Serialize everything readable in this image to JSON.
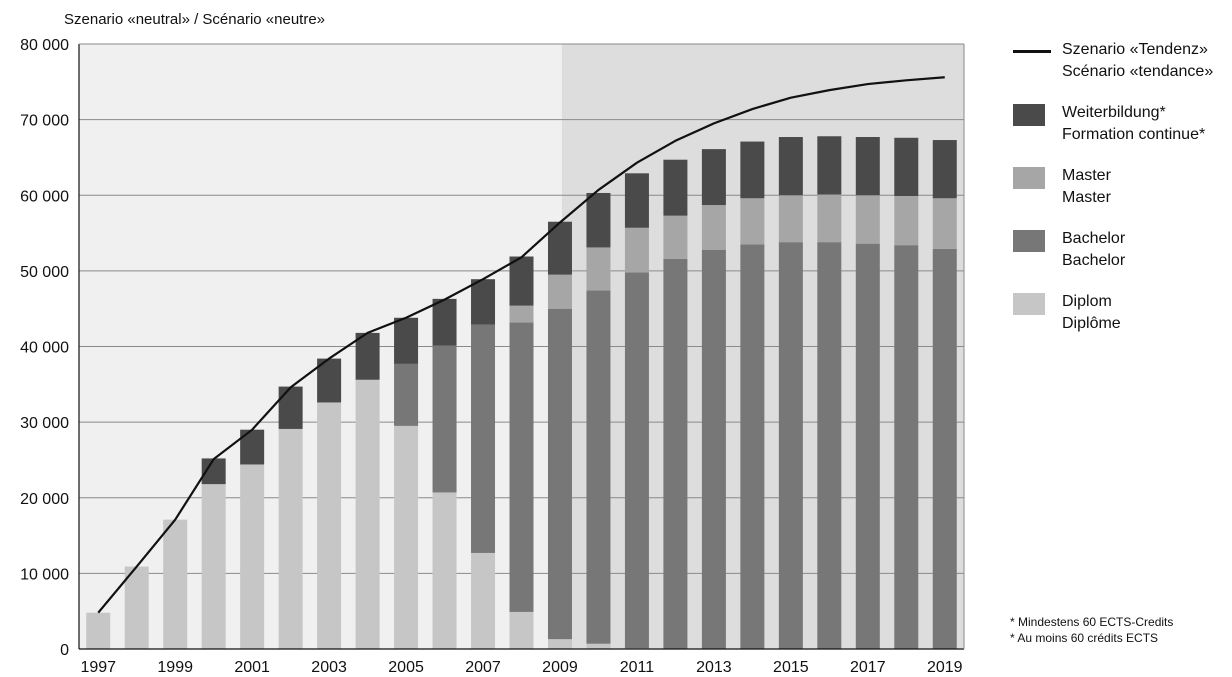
{
  "chart_data": {
    "type": "bar",
    "stacked": true,
    "subtitle": "Szenario «neutral» / Scénario «neutre»",
    "categories": [
      "1997",
      "1998",
      "1999",
      "2000",
      "2001",
      "2002",
      "2003",
      "2004",
      "2005",
      "2006",
      "2007",
      "2008",
      "2009",
      "2010",
      "2011",
      "2012",
      "2013",
      "2014",
      "2015",
      "2016",
      "2017",
      "2018",
      "2019"
    ],
    "x_tick_labels": [
      "1997",
      "1999",
      "2001",
      "2003",
      "2005",
      "2007",
      "2009",
      "2011",
      "2013",
      "2015",
      "2017",
      "2019"
    ],
    "ylim": [
      0,
      80000
    ],
    "y_ticks": [
      0,
      10000,
      20000,
      30000,
      40000,
      50000,
      60000,
      70000,
      80000
    ],
    "y_tick_labels": [
      "0",
      "10 000",
      "20 000",
      "30 000",
      "40 000",
      "50 000",
      "60 000",
      "70 000",
      "80 000"
    ],
    "grid": "horizontal",
    "shaded_region": {
      "from": "2010",
      "to": "2019",
      "color": "#dcdddc"
    },
    "plot_background": "#f0f0f0",
    "series": [
      {
        "name": "Diplom\nDiplôme",
        "color": "#c6c6c6",
        "values": [
          4800,
          10900,
          17100,
          21800,
          24400,
          29100,
          32600,
          35600,
          29500,
          20700,
          12700,
          4900,
          1300,
          700,
          100,
          0,
          0,
          0,
          0,
          0,
          0,
          0,
          0
        ]
      },
      {
        "name": "Bachelor\nBachelor",
        "color": "#777777",
        "values": [
          0,
          0,
          0,
          0,
          0,
          0,
          0,
          0,
          8200,
          19400,
          30200,
          38300,
          43700,
          46700,
          49700,
          51600,
          52800,
          53500,
          53800,
          53800,
          53600,
          53400,
          52900
        ]
      },
      {
        "name": "Master\nMaster",
        "color": "#a6a6a6",
        "values": [
          0,
          0,
          0,
          0,
          0,
          0,
          0,
          0,
          0,
          0,
          0,
          2200,
          4500,
          5700,
          5900,
          5700,
          5900,
          6100,
          6200,
          6300,
          6400,
          6500,
          6700
        ]
      },
      {
        "name": "Weiterbildung*\nFormation continue*",
        "color": "#4a4a4a",
        "values": [
          0,
          0,
          0,
          3400,
          4600,
          5600,
          5800,
          6200,
          6100,
          6200,
          6000,
          6500,
          7000,
          7200,
          7200,
          7400,
          7400,
          7500,
          7700,
          7700,
          7700,
          7700,
          7700
        ]
      }
    ],
    "line": {
      "name": "Szenario «Tendenz»\nScénario «tendance»",
      "color": "#111111",
      "values": [
        4800,
        10900,
        17100,
        25100,
        29000,
        34600,
        38400,
        41800,
        43800,
        46200,
        48900,
        51800,
        56400,
        60700,
        64300,
        67200,
        69500,
        71400,
        72900,
        73900,
        74700,
        75200,
        75600
      ]
    },
    "legend_order": [
      "Szenario «Tendenz»\nScénario «tendance»",
      "Weiterbildung*\nFormation continue*",
      "Master\nMaster",
      "Bachelor\nBachelor",
      "Diplom\nDiplôme"
    ],
    "legend_position": "right",
    "footnotes": [
      "* Mindestens 60 ECTS-Credits",
      "* Au moins 60 crédits ECTS"
    ]
  }
}
